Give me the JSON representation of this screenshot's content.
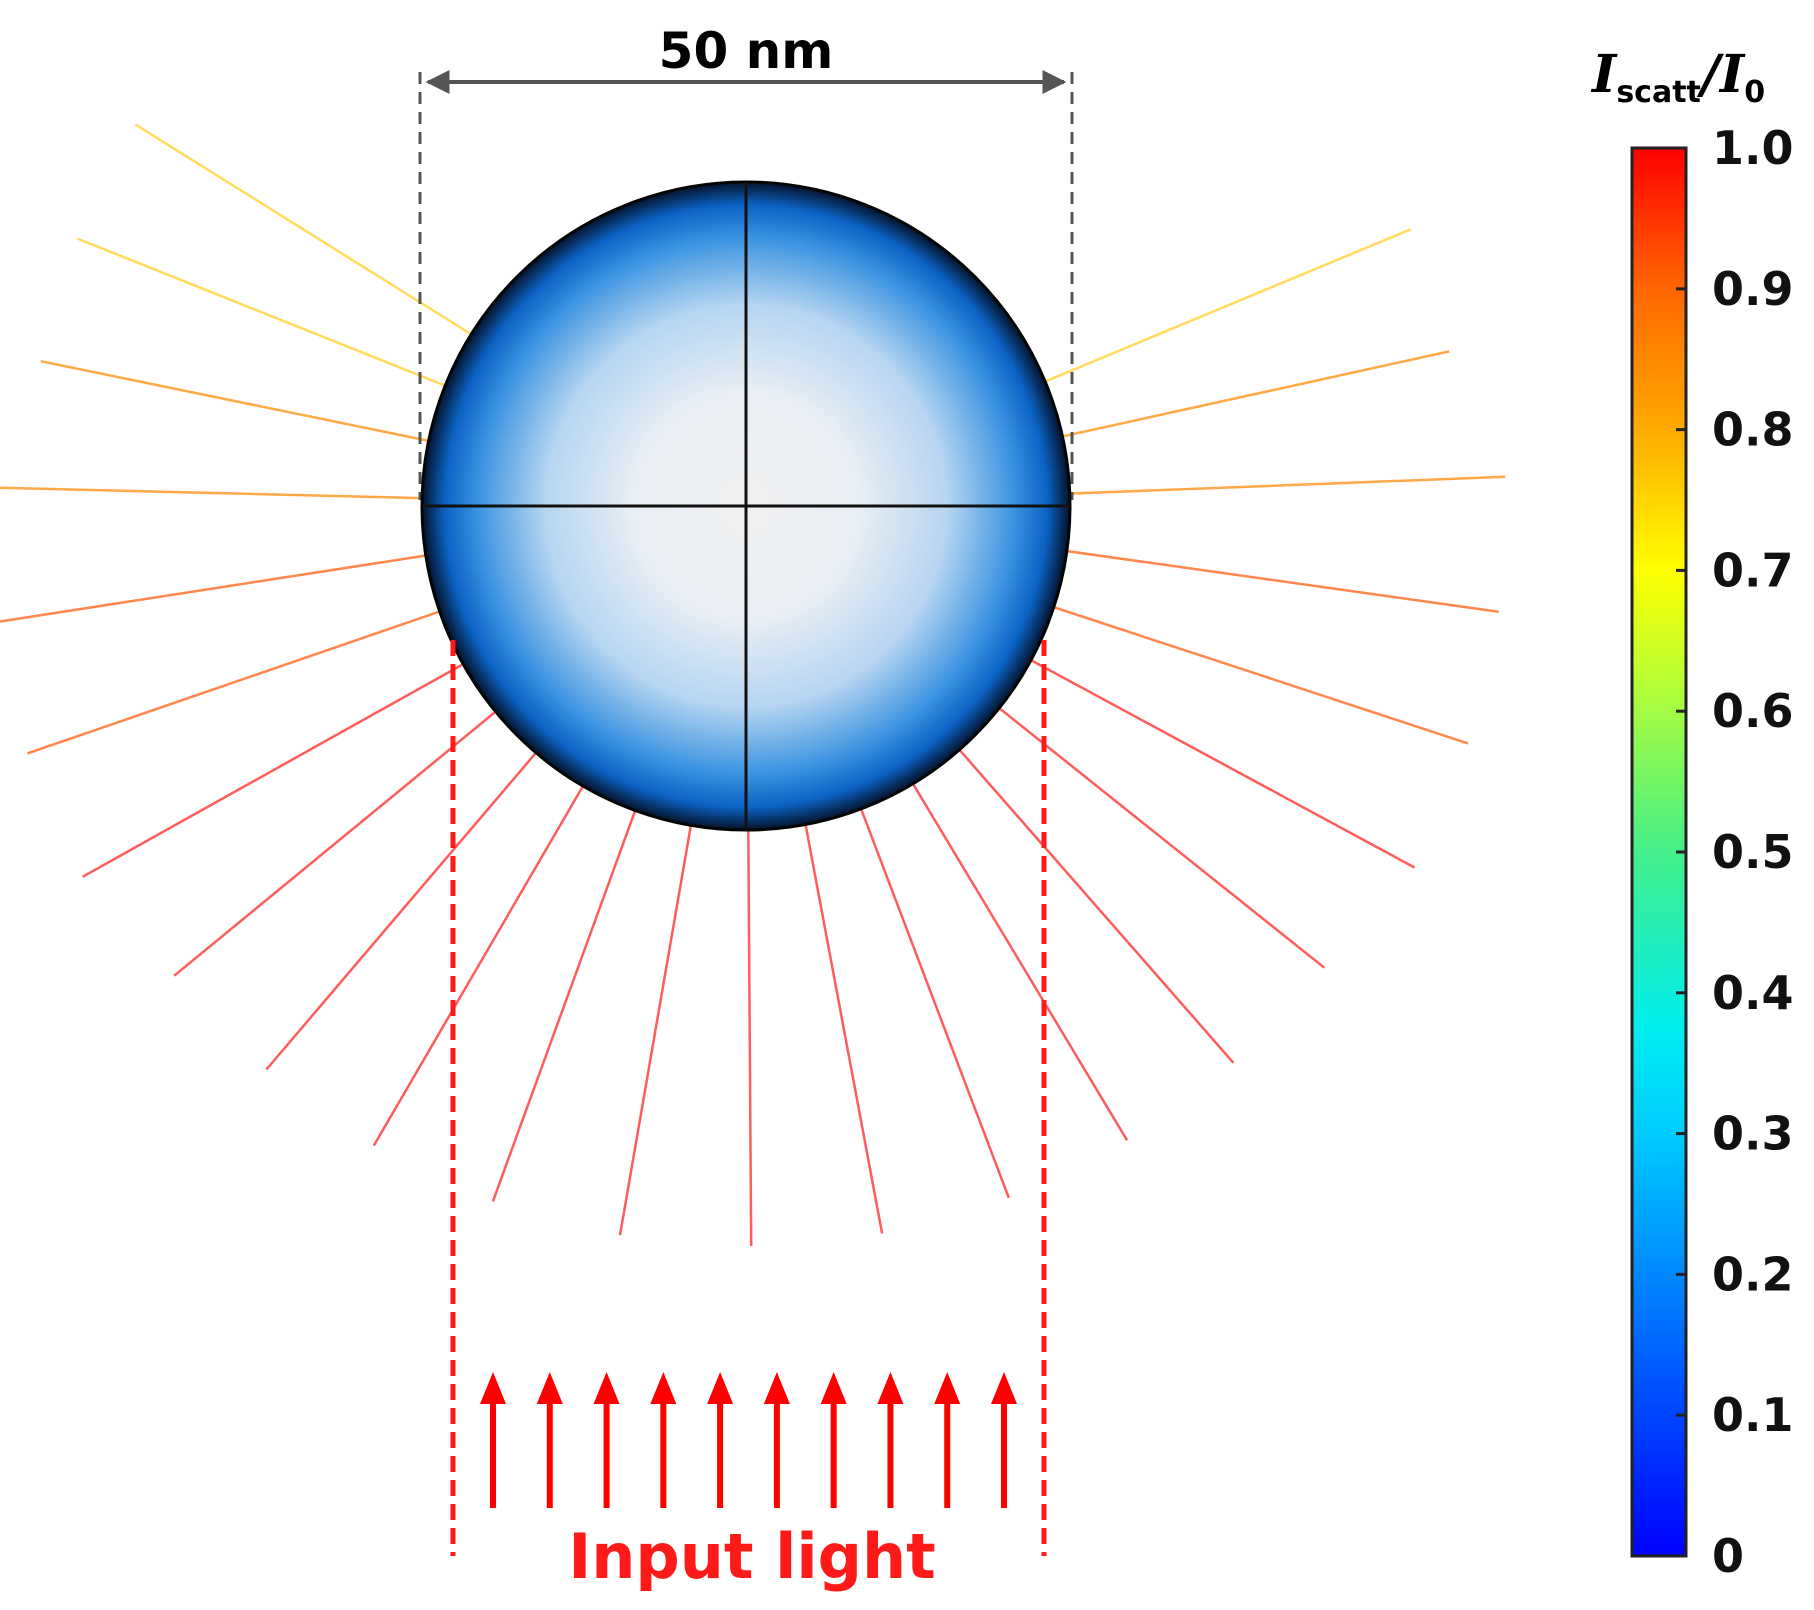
{
  "dimension": {
    "label": "50 nm"
  },
  "input_light": {
    "label": "Input light",
    "arrow_count": 10
  },
  "colorbar": {
    "title_main": "I",
    "title_sub": "scatt",
    "title_sep": "/I",
    "title_sub2": "0",
    "ticks": [
      "1.0",
      "0.9",
      "0.8",
      "0.7",
      "0.6",
      "0.5",
      "0.4",
      "0.3",
      "0.2",
      "0.1",
      "0"
    ],
    "colormap": "jet"
  },
  "scattering": {
    "rays_per_side": 12,
    "bottom_rays": 12,
    "colors": {
      "side_top": "#ffd84a",
      "side_mid": "#ffa033",
      "side_low": "#ff7a3a",
      "bottom": "#ff4a4a"
    }
  },
  "colors": {
    "input_light": "#ff0000",
    "sphere_edge": "#0a0a0a",
    "sphere_inner": "#f0f0f0",
    "sphere_blue": "#0a6fd6"
  }
}
